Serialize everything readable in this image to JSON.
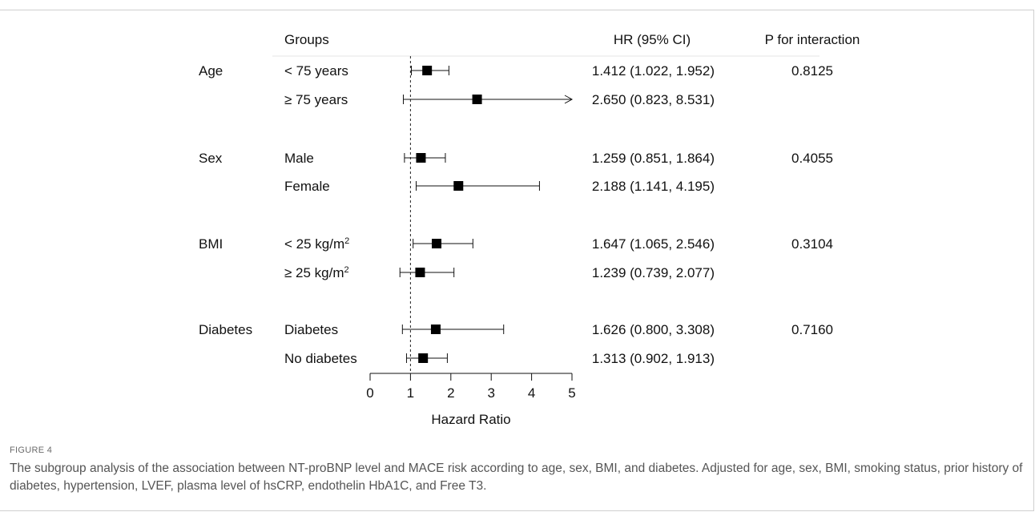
{
  "chart_data": {
    "type": "forest",
    "headers": {
      "groups": "Groups",
      "hr": "HR (95% CI)",
      "p": "P for interaction"
    },
    "xlabel": "Hazard Ratio",
    "xlim": [
      0,
      5
    ],
    "xticks": [
      "0",
      "1",
      "2",
      "3",
      "4",
      "5"
    ],
    "reference_line": 1,
    "categories": [
      {
        "name": "Age",
        "p": "0.8125",
        "rows": [
          {
            "label": "< 75 years",
            "sup": "",
            "hr": 1.412,
            "lo": 1.022,
            "hi": 1.952,
            "text": "1.412 (1.022, 1.952)"
          },
          {
            "label": "≥ 75 years",
            "sup": "",
            "hr": 2.65,
            "lo": 0.823,
            "hi": 8.531,
            "text": "2.650 (0.823, 8.531)"
          }
        ]
      },
      {
        "name": "Sex",
        "p": "0.4055",
        "rows": [
          {
            "label": "Male",
            "sup": "",
            "hr": 1.259,
            "lo": 0.851,
            "hi": 1.864,
            "text": "1.259 (0.851, 1.864)"
          },
          {
            "label": "Female",
            "sup": "",
            "hr": 2.188,
            "lo": 1.141,
            "hi": 4.195,
            "text": "2.188 (1.141, 4.195)"
          }
        ]
      },
      {
        "name": "BMI",
        "p": "0.3104",
        "rows": [
          {
            "label": "< 25 kg/m",
            "sup": "2",
            "hr": 1.647,
            "lo": 1.065,
            "hi": 2.546,
            "text": "1.647 (1.065, 2.546)"
          },
          {
            "label": "≥ 25 kg/m",
            "sup": "2",
            "hr": 1.239,
            "lo": 0.739,
            "hi": 2.077,
            "text": "1.239 (0.739, 2.077)"
          }
        ]
      },
      {
        "name": "Diabetes",
        "p": "0.7160",
        "rows": [
          {
            "label": "Diabetes",
            "sup": "",
            "hr": 1.626,
            "lo": 0.8,
            "hi": 3.308,
            "text": "1.626 (0.800, 3.308)"
          },
          {
            "label": "No diabetes",
            "sup": "",
            "hr": 1.313,
            "lo": 0.902,
            "hi": 1.913,
            "text": "1.313 (0.902, 1.913)"
          }
        ]
      }
    ]
  },
  "figure": {
    "label": "FIGURE 4",
    "caption": "The subgroup analysis of the association between NT-proBNP level and MACE risk according to age, sex, BMI, and diabetes. Adjusted for age, sex, BMI, smoking status, prior history of diabetes, hypertension, LVEF, plasma level of hsCRP, endothelin HbA1C, and Free T3."
  }
}
